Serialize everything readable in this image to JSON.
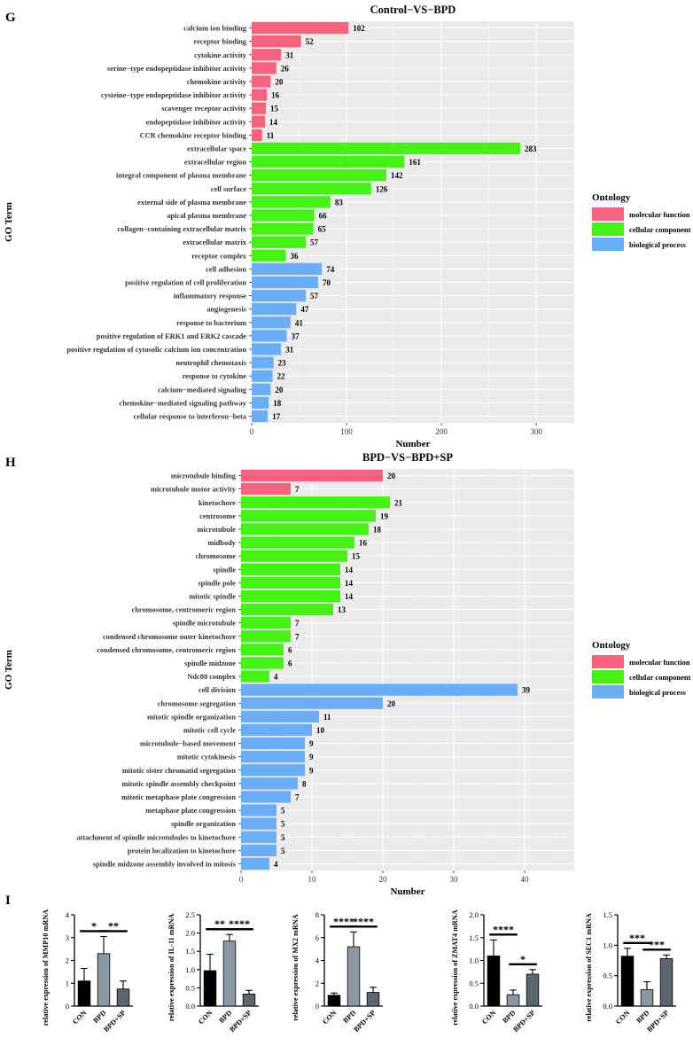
{
  "panel_letters": {
    "g": "G",
    "h": "H",
    "i": "I"
  },
  "colors": {
    "molecular_function": "#f8627e",
    "cellular_component": "#44f214",
    "biological_process": "#6aaef7",
    "panel_bg": "#ebebeb",
    "bar_dark": "#000000",
    "bar_mid": "#8a98a6",
    "bar_slate": "#5c6670"
  },
  "legend": {
    "title": "Ontology",
    "items": [
      {
        "label": "molecular function",
        "key": "molecular_function"
      },
      {
        "label": "cellular component",
        "key": "cellular_component"
      },
      {
        "label": "biological process",
        "key": "biological_process"
      }
    ]
  },
  "chart_data": [
    {
      "id": "G",
      "type": "bar",
      "orientation": "horizontal",
      "title": "Control−VS−BPD",
      "xlabel": "Number",
      "ylabel": "GO Term",
      "xlim": [
        0,
        340
      ],
      "xticks": [
        0,
        100,
        200,
        300
      ],
      "categories": [
        "calcium ion binding",
        "receptor binding",
        "cytokine activity",
        "serine−type endopeptidase inhibitor activity",
        "chemokine activity",
        "cysteine−type endopeptidase inhibitor activity",
        "scavenger receptor activity",
        "endopeptidase inhibitor activity",
        "CCR chemokine receptor binding",
        "extracellular space",
        "extracellular region",
        "integral component of plasma membrane",
        "cell surface",
        "external side of plasma membrane",
        "apical plasma membrane",
        "collagen−containing extracellular matrix",
        "extracellular matrix",
        "receptor complex",
        "cell adhesion",
        "positive regulation of cell proliferation",
        "inflammatory response",
        "angiogenesis",
        "response to bacterium",
        "positive regulation of ERK1 and ERK2 cascade",
        "positive regulation of cytosolic calcium ion concentration",
        "neutrophil chemotaxis",
        "response to cytokine",
        "calcium−mediated signaling",
        "chemokine−mediated signaling pathway",
        "cellular response to interferon−beta"
      ],
      "values": [
        102,
        52,
        31,
        26,
        20,
        16,
        15,
        14,
        11,
        283,
        161,
        142,
        126,
        83,
        66,
        65,
        57,
        36,
        74,
        70,
        57,
        47,
        41,
        37,
        31,
        23,
        22,
        20,
        18,
        17
      ],
      "groups": [
        "molecular_function",
        "molecular_function",
        "molecular_function",
        "molecular_function",
        "molecular_function",
        "molecular_function",
        "molecular_function",
        "molecular_function",
        "molecular_function",
        "cellular_component",
        "cellular_component",
        "cellular_component",
        "cellular_component",
        "cellular_component",
        "cellular_component",
        "cellular_component",
        "cellular_component",
        "cellular_component",
        "biological_process",
        "biological_process",
        "biological_process",
        "biological_process",
        "biological_process",
        "biological_process",
        "biological_process",
        "biological_process",
        "biological_process",
        "biological_process",
        "biological_process",
        "biological_process"
      ]
    },
    {
      "id": "H",
      "type": "bar",
      "orientation": "horizontal",
      "title": "BPD−VS−BPD+SP",
      "xlabel": "Number",
      "ylabel": "GO Term",
      "xlim": [
        0,
        47
      ],
      "xticks": [
        0,
        10,
        20,
        30,
        40
      ],
      "categories": [
        "microtubule binding",
        "microtubule motor activity",
        "kinetochore",
        "centrosome",
        "microtubule",
        "midbody",
        "chromosome",
        "spindle",
        "spindle pole",
        "mitotic spindle",
        "chromosome, centromeric region",
        "spindle microtubule",
        "condensed chromosome outer kinetochore",
        "condensed chromosome, centromeric region",
        "spindle midzone",
        "Ndc80 complex",
        "cell division",
        "chromosome segregation",
        "mitotic spindle organization",
        "mitotic cell cycle",
        "microtubule−based movement",
        "mitotic cytokinesis",
        "mitotic sister chromatid segregation",
        "mitotic spindle assembly checkpoint",
        "mitotic metaphase plate congression",
        "metaphase plate congression",
        "spindle organization",
        "attachment of spindle microtubules to kinetochore",
        "protein localization to kinetochore",
        "spindle midzone assembly involved in mitosis"
      ],
      "values": [
        20,
        7,
        21,
        19,
        18,
        16,
        15,
        14,
        14,
        14,
        13,
        7,
        7,
        6,
        6,
        4,
        39,
        20,
        11,
        10,
        9,
        9,
        9,
        8,
        7,
        5,
        5,
        5,
        5,
        4
      ],
      "groups": [
        "molecular_function",
        "molecular_function",
        "cellular_component",
        "cellular_component",
        "cellular_component",
        "cellular_component",
        "cellular_component",
        "cellular_component",
        "cellular_component",
        "cellular_component",
        "cellular_component",
        "cellular_component",
        "cellular_component",
        "cellular_component",
        "cellular_component",
        "cellular_component",
        "biological_process",
        "biological_process",
        "biological_process",
        "biological_process",
        "biological_process",
        "biological_process",
        "biological_process",
        "biological_process",
        "biological_process",
        "biological_process",
        "biological_process",
        "biological_process",
        "biological_process",
        "biological_process"
      ]
    },
    {
      "id": "I1",
      "type": "bar",
      "ylabel": "relative expression of MMP10 mRNA",
      "categories": [
        "CON",
        "BPD",
        "BPD+SP"
      ],
      "values": [
        1.1,
        2.3,
        0.75
      ],
      "errors": [
        0.55,
        0.75,
        0.35
      ],
      "ylim": [
        0,
        4
      ],
      "yticks": [
        0,
        1,
        2,
        3,
        4
      ],
      "significance": [
        {
          "from": 0,
          "to": 1,
          "label": "*"
        },
        {
          "from": 1,
          "to": 2,
          "label": "**"
        }
      ]
    },
    {
      "id": "I2",
      "type": "bar",
      "ylabel": "relative expression of IL-11 mRNA",
      "categories": [
        "CON",
        "BPD",
        "BPD+SP"
      ],
      "values": [
        0.97,
        1.78,
        0.33
      ],
      "errors": [
        0.45,
        0.18,
        0.1
      ],
      "ylim": [
        0,
        2.5
      ],
      "yticks": [
        0.0,
        0.5,
        1.0,
        1.5,
        2.0,
        2.5
      ],
      "significance": [
        {
          "from": 0,
          "to": 1,
          "label": "**"
        },
        {
          "from": 1,
          "to": 2,
          "label": "****"
        }
      ]
    },
    {
      "id": "I3",
      "type": "bar",
      "ylabel": "relative expression of MX2 mRNA",
      "categories": [
        "CON",
        "BPD",
        "BPD+SP"
      ],
      "values": [
        0.95,
        5.2,
        1.2
      ],
      "errors": [
        0.2,
        1.3,
        0.45
      ],
      "ylim": [
        0,
        8
      ],
      "yticks": [
        0,
        2,
        4,
        6,
        8
      ],
      "significance": [
        {
          "from": 0,
          "to": 1,
          "label": "****"
        },
        {
          "from": 1,
          "to": 2,
          "label": "****"
        }
      ]
    },
    {
      "id": "I4",
      "type": "bar",
      "ylabel": "relative expression of ZMAT4 mRNA",
      "categories": [
        "CON",
        "BPD",
        "BPD+SP"
      ],
      "values": [
        1.1,
        0.25,
        0.7
      ],
      "errors": [
        0.35,
        0.1,
        0.1
      ],
      "ylim": [
        0,
        2.0
      ],
      "yticks": [
        0.0,
        0.5,
        1.0,
        1.5,
        2.0
      ],
      "significance": [
        {
          "from": 0,
          "to": 1,
          "label": "****"
        },
        {
          "from": 1,
          "to": 2,
          "label": "*"
        }
      ]
    },
    {
      "id": "I5",
      "type": "bar",
      "ylabel": "relative expression of SEC1 mRNA",
      "categories": [
        "CON",
        "BPD",
        "BPD+SP"
      ],
      "values": [
        0.82,
        0.27,
        0.78
      ],
      "errors": [
        0.13,
        0.13,
        0.06
      ],
      "ylim": [
        0,
        1.5
      ],
      "yticks": [
        0.0,
        0.5,
        1.0,
        1.5
      ],
      "significance": [
        {
          "from": 0,
          "to": 1,
          "label": "***"
        },
        {
          "from": 1,
          "to": 2,
          "label": "***"
        }
      ]
    }
  ]
}
